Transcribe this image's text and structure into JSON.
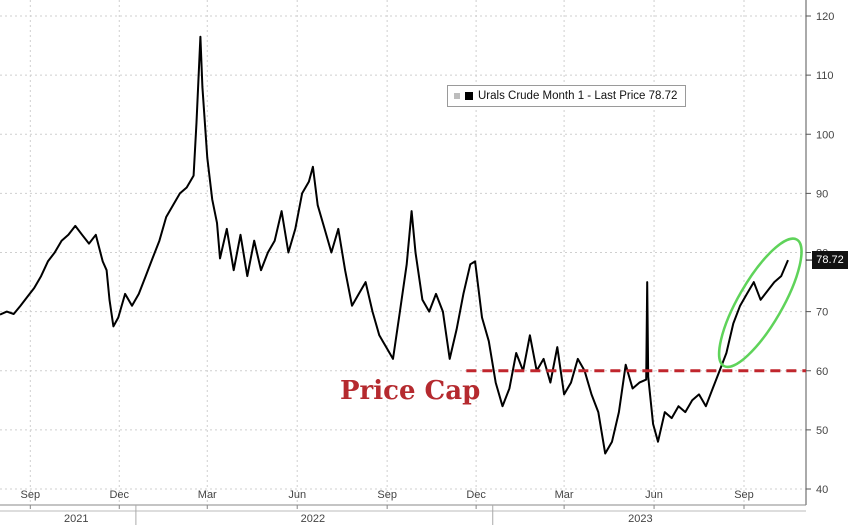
{
  "chart_data": {
    "type": "line",
    "title": "",
    "xlabel": "",
    "ylabel": "",
    "ylim": [
      40,
      122
    ],
    "y_ticks": [
      40,
      50,
      60,
      70,
      80,
      90,
      100,
      110,
      120
    ],
    "x_ticks": [
      {
        "date": "2021-09-15",
        "label": "Sep"
      },
      {
        "date": "2021-12-15",
        "label": "Dec"
      },
      {
        "date": "2022-03-15",
        "label": "Mar"
      },
      {
        "date": "2022-06-15",
        "label": "Jun"
      },
      {
        "date": "2022-09-15",
        "label": "Sep"
      },
      {
        "date": "2022-12-15",
        "label": "Dec"
      },
      {
        "date": "2023-03-15",
        "label": "Mar"
      },
      {
        "date": "2023-06-15",
        "label": "Jun"
      },
      {
        "date": "2023-09-15",
        "label": "Sep"
      }
    ],
    "years": [
      {
        "label": "2021",
        "date": "2021-11-01"
      },
      {
        "label": "2022",
        "date": "2022-07-01"
      },
      {
        "label": "2023",
        "date": "2023-06-01"
      }
    ],
    "grid": true,
    "legend": "top-right",
    "series": [
      {
        "name": "Urals Crude Month 1 - Last Price 78.72",
        "color": "#000000",
        "points": [
          [
            "2021-08-15",
            69.5
          ],
          [
            "2021-08-22",
            70
          ],
          [
            "2021-08-29",
            69.6
          ],
          [
            "2021-09-05",
            71
          ],
          [
            "2021-09-12",
            72.5
          ],
          [
            "2021-09-19",
            74
          ],
          [
            "2021-09-26",
            76
          ],
          [
            "2021-10-03",
            78.5
          ],
          [
            "2021-10-10",
            80
          ],
          [
            "2021-10-17",
            82
          ],
          [
            "2021-10-24",
            83
          ],
          [
            "2021-10-31",
            84.5
          ],
          [
            "2021-11-07",
            83
          ],
          [
            "2021-11-14",
            81.5
          ],
          [
            "2021-11-21",
            83
          ],
          [
            "2021-11-28",
            78.5
          ],
          [
            "2021-12-02",
            77
          ],
          [
            "2021-12-05",
            72
          ],
          [
            "2021-12-09",
            67.5
          ],
          [
            "2021-12-14",
            69
          ],
          [
            "2021-12-21",
            73
          ],
          [
            "2021-12-28",
            71
          ],
          [
            "2022-01-04",
            73
          ],
          [
            "2022-01-11",
            76
          ],
          [
            "2022-01-18",
            79
          ],
          [
            "2022-01-25",
            82
          ],
          [
            "2022-02-01",
            86
          ],
          [
            "2022-02-08",
            88
          ],
          [
            "2022-02-15",
            90
          ],
          [
            "2022-02-22",
            91
          ],
          [
            "2022-03-01",
            93
          ],
          [
            "2022-03-04",
            102
          ],
          [
            "2022-03-08",
            116.5
          ],
          [
            "2022-03-10",
            108
          ],
          [
            "2022-03-15",
            96
          ],
          [
            "2022-03-20",
            89
          ],
          [
            "2022-03-25",
            85
          ],
          [
            "2022-03-28",
            79
          ],
          [
            "2022-04-04",
            84
          ],
          [
            "2022-04-11",
            77
          ],
          [
            "2022-04-18",
            83
          ],
          [
            "2022-04-25",
            76
          ],
          [
            "2022-05-02",
            82
          ],
          [
            "2022-05-09",
            77
          ],
          [
            "2022-05-16",
            80
          ],
          [
            "2022-05-23",
            82
          ],
          [
            "2022-05-30",
            87
          ],
          [
            "2022-06-06",
            80
          ],
          [
            "2022-06-13",
            84
          ],
          [
            "2022-06-20",
            90
          ],
          [
            "2022-06-27",
            92
          ],
          [
            "2022-07-01",
            94.5
          ],
          [
            "2022-07-06",
            88
          ],
          [
            "2022-07-13",
            84
          ],
          [
            "2022-07-20",
            80
          ],
          [
            "2022-07-27",
            84
          ],
          [
            "2022-08-03",
            77
          ],
          [
            "2022-08-10",
            71
          ],
          [
            "2022-08-17",
            73
          ],
          [
            "2022-08-24",
            75
          ],
          [
            "2022-08-31",
            70
          ],
          [
            "2022-09-07",
            66
          ],
          [
            "2022-09-14",
            64
          ],
          [
            "2022-09-21",
            62
          ],
          [
            "2022-09-28",
            70
          ],
          [
            "2022-10-05",
            78
          ],
          [
            "2022-10-10",
            87
          ],
          [
            "2022-10-14",
            80
          ],
          [
            "2022-10-21",
            72
          ],
          [
            "2022-10-28",
            70
          ],
          [
            "2022-11-04",
            73
          ],
          [
            "2022-11-11",
            70
          ],
          [
            "2022-11-18",
            62
          ],
          [
            "2022-11-25",
            67
          ],
          [
            "2022-12-02",
            73
          ],
          [
            "2022-12-09",
            78
          ],
          [
            "2022-12-14",
            78.5
          ],
          [
            "2022-12-21",
            69
          ],
          [
            "2022-12-28",
            65
          ],
          [
            "2023-01-04",
            58
          ],
          [
            "2023-01-11",
            54
          ],
          [
            "2023-01-18",
            57
          ],
          [
            "2023-01-25",
            63
          ],
          [
            "2023-02-01",
            60
          ],
          [
            "2023-02-08",
            66
          ],
          [
            "2023-02-15",
            60
          ],
          [
            "2023-02-22",
            62
          ],
          [
            "2023-03-01",
            58
          ],
          [
            "2023-03-08",
            64
          ],
          [
            "2023-03-15",
            56
          ],
          [
            "2023-03-22",
            58
          ],
          [
            "2023-03-29",
            62
          ],
          [
            "2023-04-05",
            60
          ],
          [
            "2023-04-12",
            56
          ],
          [
            "2023-04-19",
            53
          ],
          [
            "2023-04-26",
            46
          ],
          [
            "2023-05-03",
            48
          ],
          [
            "2023-05-10",
            53
          ],
          [
            "2023-05-17",
            61
          ],
          [
            "2023-05-24",
            57
          ],
          [
            "2023-05-31",
            58
          ],
          [
            "2023-06-07",
            58.5
          ],
          [
            "2023-06-08",
            75
          ],
          [
            "2023-06-09",
            59
          ],
          [
            "2023-06-14",
            51
          ],
          [
            "2023-06-19",
            48
          ],
          [
            "2023-06-26",
            53
          ],
          [
            "2023-07-03",
            52
          ],
          [
            "2023-07-10",
            54
          ],
          [
            "2023-07-17",
            53
          ],
          [
            "2023-07-24",
            55
          ],
          [
            "2023-07-31",
            56
          ],
          [
            "2023-08-07",
            54
          ],
          [
            "2023-08-14",
            57
          ],
          [
            "2023-08-21",
            60
          ],
          [
            "2023-08-28",
            63
          ],
          [
            "2023-09-04",
            68
          ],
          [
            "2023-09-11",
            71
          ],
          [
            "2023-09-18",
            73
          ],
          [
            "2023-09-25",
            75
          ],
          [
            "2023-10-02",
            72
          ],
          [
            "2023-10-09",
            73.5
          ],
          [
            "2023-10-16",
            75
          ],
          [
            "2023-10-23",
            76
          ],
          [
            "2023-10-30",
            78.72
          ]
        ]
      }
    ],
    "legend_label": "Urals Crude Month 1 - Last Price 78.72",
    "last_value_label": "78.72",
    "price_cap": {
      "value": 60,
      "start": "2022-12-05",
      "label": "Price Cap",
      "color": "#c0262d"
    },
    "highlight_ellipse": {
      "start": "2023-08-18",
      "end": "2023-10-30",
      "color": "#5fd35a"
    }
  }
}
